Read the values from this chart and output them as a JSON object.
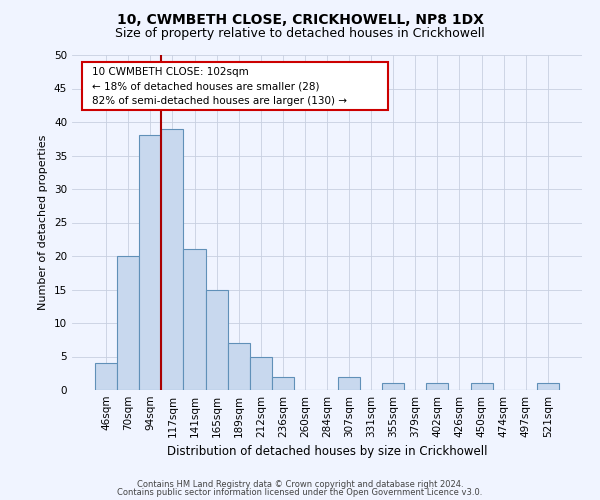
{
  "title": "10, CWMBETH CLOSE, CRICKHOWELL, NP8 1DX",
  "subtitle": "Size of property relative to detached houses in Crickhowell",
  "xlabel": "Distribution of detached houses by size in Crickhowell",
  "ylabel": "Number of detached properties",
  "bar_labels": [
    "46sqm",
    "70sqm",
    "94sqm",
    "117sqm",
    "141sqm",
    "165sqm",
    "189sqm",
    "212sqm",
    "236sqm",
    "260sqm",
    "284sqm",
    "307sqm",
    "331sqm",
    "355sqm",
    "379sqm",
    "402sqm",
    "426sqm",
    "450sqm",
    "474sqm",
    "497sqm",
    "521sqm"
  ],
  "bar_values": [
    4,
    20,
    38,
    39,
    21,
    15,
    7,
    5,
    2,
    0,
    0,
    2,
    0,
    1,
    0,
    1,
    0,
    1,
    0,
    0,
    1
  ],
  "bar_color": "#c8d8ee",
  "bar_edge_color": "#6090b8",
  "vline_color": "#aa0000",
  "ylim": [
    0,
    50
  ],
  "yticks": [
    0,
    5,
    10,
    15,
    20,
    25,
    30,
    35,
    40,
    45,
    50
  ],
  "ann_line1": "10 CWMBETH CLOSE: 102sqm",
  "ann_line2": "← 18% of detached houses are smaller (28)",
  "ann_line3": "82% of semi-detached houses are larger (130) →",
  "footer_line1": "Contains HM Land Registry data © Crown copyright and database right 2024.",
  "footer_line2": "Contains public sector information licensed under the Open Government Licence v3.0.",
  "bg_color": "#f0f4ff",
  "grid_color": "#c8d0e0",
  "title_fontsize": 10,
  "subtitle_fontsize": 9
}
